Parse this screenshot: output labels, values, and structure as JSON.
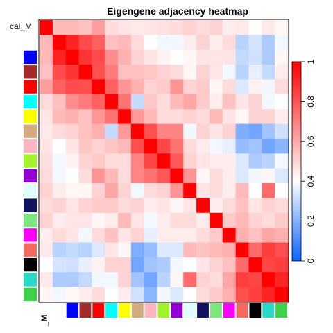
{
  "chart_data": {
    "type": "heatmap",
    "title": "Eigengene adjacency heatmap",
    "row_label": "cal_M",
    "col_label": "_M",
    "modules": [
      "#8c8c8c",
      "#3dd14a",
      "#28d9c9",
      "#000000",
      "#f56a5f",
      "#ff00ff",
      "#7ee67e",
      "#121263",
      "#e0ffff",
      "#9400d3",
      "#a2f22b",
      "#ffb6c1",
      "#d2aa7d",
      "#ffff00",
      "#00ffff",
      "#ff0000",
      "#a52a2a",
      "#0000ff",
      "#ffffff"
    ],
    "matrix": [
      [
        1.0,
        0.58,
        0.58,
        0.56,
        0.64,
        0.5,
        0.48,
        0.47,
        0.48,
        0.49,
        0.5,
        0.52,
        0.5,
        0.52,
        0.46,
        0.47,
        0.42,
        0.47,
        0.44
      ],
      [
        0.58,
        1.0,
        0.92,
        0.83,
        0.78,
        0.56,
        0.58,
        0.5,
        0.42,
        0.4,
        0.4,
        0.46,
        0.52,
        0.46,
        0.5,
        0.3,
        0.35,
        0.28,
        0.4
      ],
      [
        0.58,
        0.92,
        1.0,
        0.88,
        0.83,
        0.68,
        0.6,
        0.52,
        0.48,
        0.45,
        0.42,
        0.44,
        0.48,
        0.48,
        0.48,
        0.32,
        0.34,
        0.28,
        0.44
      ],
      [
        0.56,
        0.83,
        0.88,
        1.0,
        0.82,
        0.72,
        0.56,
        0.56,
        0.55,
        0.52,
        0.5,
        0.44,
        0.52,
        0.48,
        0.4,
        0.3,
        0.38,
        0.32,
        0.46
      ],
      [
        0.64,
        0.78,
        0.83,
        0.82,
        1.0,
        0.78,
        0.66,
        0.6,
        0.52,
        0.54,
        0.66,
        0.52,
        0.54,
        0.44,
        0.5,
        0.36,
        0.45,
        0.4,
        0.5
      ],
      [
        0.5,
        0.56,
        0.68,
        0.72,
        0.78,
        1.0,
        0.74,
        0.32,
        0.55,
        0.5,
        0.58,
        0.62,
        0.54,
        0.46,
        0.56,
        0.48,
        0.52,
        0.4,
        0.42
      ],
      [
        0.48,
        0.58,
        0.6,
        0.56,
        0.66,
        0.74,
        1.0,
        0.65,
        0.58,
        0.5,
        0.5,
        0.52,
        0.5,
        0.58,
        0.48,
        0.44,
        0.52,
        0.52,
        0.46
      ],
      [
        0.47,
        0.5,
        0.52,
        0.56,
        0.6,
        0.32,
        0.65,
        1.0,
        0.82,
        0.7,
        0.7,
        0.4,
        0.52,
        0.48,
        0.52,
        0.2,
        0.18,
        0.26,
        0.34
      ],
      [
        0.48,
        0.42,
        0.48,
        0.55,
        0.52,
        0.55,
        0.58,
        0.82,
        1.0,
        0.84,
        0.74,
        0.5,
        0.46,
        0.4,
        0.38,
        0.24,
        0.26,
        0.18,
        0.22
      ],
      [
        0.49,
        0.4,
        0.45,
        0.52,
        0.54,
        0.5,
        0.5,
        0.7,
        0.84,
        1.0,
        0.8,
        0.52,
        0.48,
        0.46,
        0.46,
        0.36,
        0.28,
        0.3,
        0.4
      ],
      [
        0.5,
        0.4,
        0.42,
        0.5,
        0.66,
        0.58,
        0.5,
        0.7,
        0.74,
        0.8,
        1.0,
        0.66,
        0.44,
        0.5,
        0.46,
        0.36,
        0.4,
        0.44,
        0.36
      ],
      [
        0.52,
        0.46,
        0.44,
        0.44,
        0.52,
        0.62,
        0.52,
        0.4,
        0.5,
        0.52,
        0.66,
        1.0,
        0.48,
        0.5,
        0.46,
        0.58,
        0.42,
        0.76,
        0.42
      ],
      [
        0.5,
        0.52,
        0.48,
        0.52,
        0.54,
        0.54,
        0.5,
        0.52,
        0.46,
        0.48,
        0.44,
        0.48,
        1.0,
        0.46,
        0.5,
        0.56,
        0.48,
        0.52,
        0.5
      ],
      [
        0.52,
        0.46,
        0.48,
        0.48,
        0.44,
        0.46,
        0.58,
        0.48,
        0.4,
        0.46,
        0.5,
        0.5,
        0.46,
        1.0,
        0.54,
        0.58,
        0.52,
        0.5,
        0.54
      ],
      [
        0.46,
        0.5,
        0.48,
        0.4,
        0.5,
        0.56,
        0.48,
        0.52,
        0.38,
        0.46,
        0.46,
        0.46,
        0.5,
        0.54,
        1.0,
        0.6,
        0.56,
        0.62,
        0.6
      ],
      [
        0.47,
        0.3,
        0.32,
        0.3,
        0.36,
        0.48,
        0.44,
        0.2,
        0.24,
        0.36,
        0.36,
        0.58,
        0.56,
        0.58,
        0.6,
        1.0,
        0.76,
        0.86,
        0.82
      ],
      [
        0.42,
        0.35,
        0.34,
        0.38,
        0.45,
        0.52,
        0.52,
        0.18,
        0.26,
        0.28,
        0.4,
        0.42,
        0.48,
        0.52,
        0.56,
        0.76,
        1.0,
        0.84,
        0.86
      ],
      [
        0.47,
        0.28,
        0.28,
        0.32,
        0.4,
        0.4,
        0.52,
        0.26,
        0.18,
        0.3,
        0.44,
        0.76,
        0.52,
        0.5,
        0.62,
        0.86,
        0.84,
        1.0,
        0.92
      ],
      [
        0.44,
        0.4,
        0.44,
        0.46,
        0.5,
        0.42,
        0.46,
        0.34,
        0.22,
        0.4,
        0.36,
        0.42,
        0.5,
        0.54,
        0.6,
        0.82,
        0.86,
        0.92,
        1.0
      ]
    ],
    "colorbar": {
      "ticks": [
        "0",
        "0.2",
        "0.4",
        "0.6",
        "0.8",
        "1"
      ],
      "tick_values": [
        0,
        0.2,
        0.4,
        0.6,
        0.8,
        1
      ],
      "range": [
        0,
        1
      ],
      "low_color": "#0a64ff",
      "mid_color": "#ffffff",
      "high_color": "#ff0000"
    }
  }
}
